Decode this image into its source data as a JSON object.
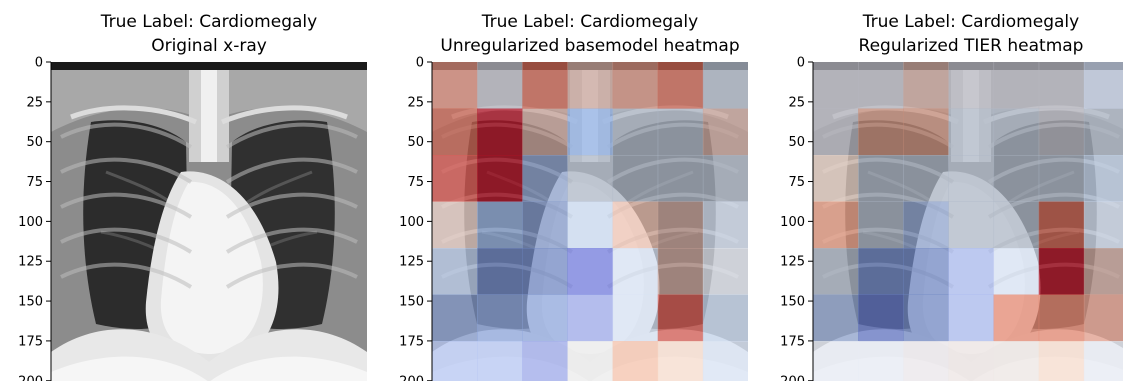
{
  "panels": [
    {
      "title_line1": "True Label: Cardiomegaly",
      "title_line2": "Original x-ray",
      "kind": "xray",
      "heatmap": null
    },
    {
      "title_line1": "True Label: Cardiomegaly",
      "title_line2": "Unregularized basemodel heatmap",
      "kind": "heatmap",
      "heatmap": [
        [
          "#d98a7a",
          "#b7b7c0",
          "#c9614f",
          "#c9a49a",
          "#cf8b7a",
          "#c9614f",
          "#aeb8c8"
        ],
        [
          "#c9614f",
          "#b31226",
          "#c9a49a",
          "#8fb0e6",
          "#aeb8c8",
          "#aeb8c8",
          "#c9a49a"
        ],
        [
          "#e05b55",
          "#b31226",
          "#8fa3cf",
          "#aeb8c8",
          "#aeb8c8",
          "#aeb8c8",
          "#aeb8c8"
        ],
        [
          "#f3d8d0",
          "#98b4e2",
          "#7f96c8",
          "#c8d8f0",
          "#f0c4b3",
          "#c9a49a",
          "#d8e3f5"
        ],
        [
          "#bfd1f0",
          "#6f86c4",
          "#6f86c4",
          "#6f78de",
          "#d8e3f5",
          "#c9a49a",
          "#e8ecf5"
        ],
        [
          "#7f96c8",
          "#8ea6de",
          "#8ea6de",
          "#9ba8ea",
          "#d8e3f5",
          "#d4574f",
          "#c8d8f0"
        ],
        [
          "#b6c6f4",
          "#b6c6f4",
          "#9ba8ea",
          "#ededed",
          "#f6c2ab",
          "#f8dccd",
          "#d8e3f5"
        ]
      ]
    },
    {
      "title_line1": "True Label: Cardiomegaly",
      "title_line2": "Regularized TIER heatmap",
      "kind": "heatmap",
      "heatmap": [
        [
          "#b7b7c0",
          "#b7b7c0",
          "#c9a49a",
          "#b7b7c0",
          "#b7b7c0",
          "#b7b7c0",
          "#c9d4ea"
        ],
        [
          "#b7b7c0",
          "#c98f7c",
          "#c98f7c",
          "#aeb8c8",
          "#aeb8c8",
          "#b7b7c0",
          "#aeb8c8"
        ],
        [
          "#f0d8cc",
          "#aeb8c8",
          "#aeb8c8",
          "#aeb8c8",
          "#aeb8c8",
          "#aeb8c8",
          "#c8d8f0"
        ],
        [
          "#f5a88e",
          "#aeb8c8",
          "#8fa3cf",
          "#aeb8c8",
          "#aeb8c8",
          "#c9614f",
          "#d8e3f5"
        ],
        [
          "#aeb8c8",
          "#6f86c4",
          "#6f86c4",
          "#a7b9ef",
          "#d8e3f5",
          "#b31226",
          "#c9a49a"
        ],
        [
          "#8fa3cf",
          "#5f73c4",
          "#6f86c4",
          "#a7b9ef",
          "#e6876f",
          "#e6876f",
          "#e6a08d"
        ],
        [
          "#e8ecf5",
          "#e8ecf5",
          "#ebe8ec",
          "#eee6e4",
          "#efe7e4",
          "#f8dccd",
          "#e8ecf5"
        ]
      ]
    }
  ],
  "y_ticks": [
    "0",
    "25",
    "50",
    "75",
    "100",
    "125",
    "150",
    "175",
    "200"
  ],
  "y_tick_values": [
    0,
    25,
    50,
    75,
    100,
    125,
    150,
    175,
    200
  ],
  "y_max": 224,
  "x_ticks": [],
  "colors": {
    "background": "#ffffff",
    "axis": "#000000",
    "text": "#000000"
  }
}
